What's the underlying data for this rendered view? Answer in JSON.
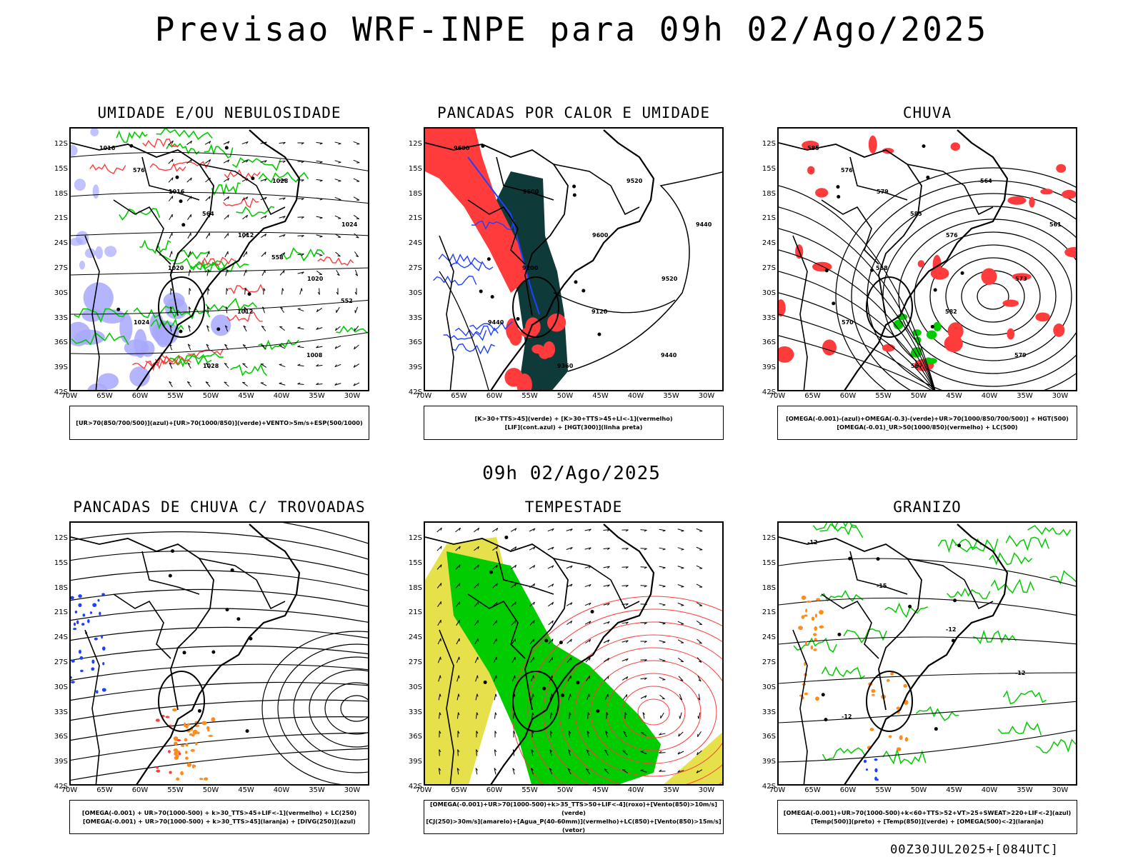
{
  "title": "Previsao WRF-INPE  para 09h 02/Ago/2025",
  "mid_title": "09h 02/Ago/2025",
  "footer": "00Z30JUL2025+[084UTC]",
  "lat_labels": [
    "12S",
    "15S",
    "18S",
    "21S",
    "24S",
    "27S",
    "30S",
    "33S",
    "36S",
    "39S",
    "42S"
  ],
  "lon_labels": [
    "70W",
    "65W",
    "60W",
    "55W",
    "50W",
    "45W",
    "40W",
    "35W",
    "30W"
  ],
  "colors": {
    "red": "#ff3b3b",
    "green": "#00cc00",
    "blue": "#2040ff",
    "lavender": "#a8a8ff",
    "darkteal": "#0e3a3a",
    "yellow": "#e6e04a",
    "orange": "#ff8c1a"
  },
  "panels": [
    {
      "title": "UMIDADE E/OU NEBULOSIDADE",
      "legend": [
        "[UR>70(850/700/500)](azul)+[UR>70(1000/850)](verde)+VENTO>5m/s+ESP(500/1000)"
      ],
      "contour_labels": [
        "1016",
        "1016",
        "1012",
        "1020",
        "1024",
        "1028",
        "1028",
        "1024",
        "1020",
        "1012",
        "1008",
        "576",
        "564",
        "558",
        "552"
      ]
    },
    {
      "title": "PANCADAS POR CALOR E UMIDADE",
      "legend": [
        "[K>30+TTS>45](verde) + [K>30+TTS>45+LI<-1](vermelho)",
        "[LIF](cont.azul) + [HGT(300)](linha preta)"
      ],
      "contour_labels": [
        "9600",
        "9600",
        "9600",
        "9520",
        "9440",
        "9360",
        "9520",
        "9440",
        "9200",
        "9120",
        "9440"
      ]
    },
    {
      "title": "CHUVA",
      "legend": [
        "[OMEGA(-0.001)-(azul)+OMEGA(-0.3)-(verde)+UR>70(1000/850/700/500)] + HGT(500)",
        "[OMEGA(-0.01)_UR>50(1000/850)(vermelho) + LC(500)"
      ],
      "contour_labels": [
        "585",
        "579",
        "576",
        "573",
        "570",
        "567",
        "564",
        "561",
        "558",
        "582",
        "579",
        "576",
        "585"
      ]
    },
    {
      "title": "PANCADAS DE CHUVA C/ TROVOADAS",
      "legend": [
        "[OMEGA(-0.001) + UR>70(1000-500) + k>30_TTS>45+LIF<-1](vermelho) + LC(250)",
        "[OMEGA(-0.001) + UR>70(1000-500) + k>30_TTS>45](laranja) + [DIVG(250)](azul)"
      ]
    },
    {
      "title": "TEMPESTADE",
      "legend": [
        "[OMEGA(-0.001)+UR>70(1000-500)+k>35_TTS>50+LIF<-4](roxo)+[Vento(850)>10m/s](verde)",
        "[CJ(250)>30m/s](amarelo)+[Agua_P(40-60mm)](vermelho)+LC(850)+[Vento(850)>15m/s](vetor)"
      ]
    },
    {
      "title": "GRANIZO",
      "legend": [
        "[OMEGA(-0.001)+UR>70(1000-500)+k<60+TTS>52+VT>25+SWEAT>220+LIF<-2](azul)",
        "[Temp(500)](preto) + [Temp(850)](verde) + [OMEGA(500)<-2](laranja)"
      ],
      "contour_labels": [
        "-12",
        "-15",
        "-12",
        "-12",
        "-12"
      ]
    }
  ]
}
